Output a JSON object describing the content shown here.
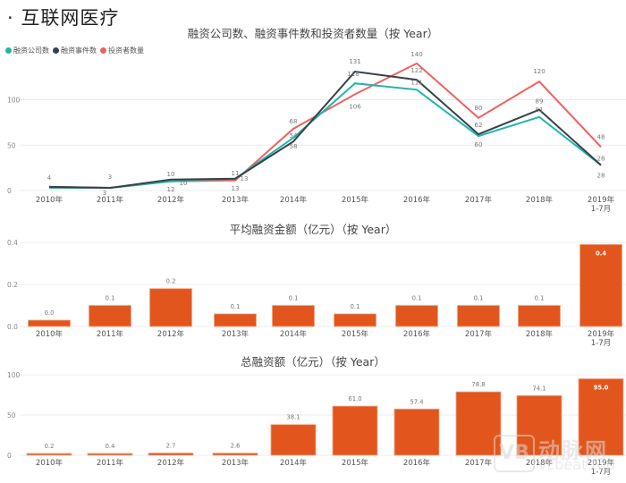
{
  "page": {
    "title": "· 互联网医疗"
  },
  "colors": {
    "companies": "#1FB5AD",
    "events": "#374148",
    "investors": "#F0605E",
    "bar": "#E2561D",
    "grid": "#ececec",
    "axis_text": "#888888"
  },
  "legend": {
    "items": [
      {
        "label": "融资公司数",
        "color": "#1FB5AD"
      },
      {
        "label": "融资事件数",
        "color": "#374148"
      },
      {
        "label": "投资者数量",
        "color": "#F0605E"
      }
    ]
  },
  "chart_data": [
    {
      "type": "line",
      "title": "融资公司数、融资事件数和投资者数量（按 Year）",
      "categories": [
        "2010年",
        "2011年",
        "2012年",
        "2013年",
        "2014年",
        "2015年",
        "2016年",
        "2017年",
        "2018年",
        "2019年\n1-7月"
      ],
      "series": [
        {
          "name": "融资公司数",
          "color": "#1FB5AD",
          "values": [
            3,
            3,
            10,
            13,
            58,
            118,
            111,
            60,
            81,
            28
          ]
        },
        {
          "name": "融资事件数",
          "color": "#374148",
          "values": [
            4,
            3,
            12,
            13,
            54,
            131,
            122,
            62,
            89,
            28
          ]
        },
        {
          "name": "投资者数量",
          "color": "#F0605E",
          "values": [
            4,
            3,
            10,
            11,
            68,
            106,
            140,
            80,
            120,
            48
          ]
        }
      ],
      "yticks": [
        0,
        50,
        100
      ],
      "ylim": [
        0,
        145
      ],
      "grid": true,
      "legend_position": "top-left",
      "xlabel": "",
      "ylabel": ""
    },
    {
      "type": "bar",
      "title": "平均融资金额（亿元）（按 Year）",
      "categories": [
        "2010年",
        "2011年",
        "2012年",
        "2013年",
        "2014年",
        "2015年",
        "2016年",
        "2017年",
        "2018年",
        "2019年\n1-7月"
      ],
      "values": [
        0.03,
        0.1,
        0.18,
        0.06,
        0.1,
        0.06,
        0.1,
        0.1,
        0.1,
        0.39
      ],
      "labels": [
        "0.0",
        "0.1",
        "0.2",
        "0.1",
        "0.1",
        "0.1",
        "0.1",
        "0.1",
        "0.1",
        "0.4"
      ],
      "yticks": [
        0.0,
        0.2,
        0.4
      ],
      "ytick_labels": [
        "0.0",
        "0.2",
        "0.4"
      ],
      "ylim": [
        0,
        0.4
      ],
      "color": "#E2561D",
      "grid": true,
      "xlabel": "",
      "ylabel": ""
    },
    {
      "type": "bar",
      "title": "总融资额（亿元）（按 Year）",
      "categories": [
        "2010年",
        "2011年",
        "2012年",
        "2013年",
        "2014年",
        "2015年",
        "2016年",
        "2017年",
        "2018年",
        "2019年\n1-7月"
      ],
      "values": [
        0.2,
        0.4,
        2.7,
        2.6,
        38.1,
        61.0,
        57.4,
        78.8,
        74.1,
        95.0
      ],
      "labels": [
        "0.2",
        "0.4",
        "2.7",
        "2.6",
        "38.1",
        "61.0",
        "57.4",
        "78.8",
        "74.1",
        "95.0"
      ],
      "yticks": [
        0,
        50,
        100
      ],
      "ytick_labels": [
        "0",
        "50",
        "100"
      ],
      "ylim": [
        0,
        100
      ],
      "color": "#E2561D",
      "grid": true,
      "xlabel": "",
      "ylabel": ""
    }
  ],
  "watermark": {
    "logo": "VB",
    "name": "动脉网",
    "url": "vcbeat.top"
  }
}
